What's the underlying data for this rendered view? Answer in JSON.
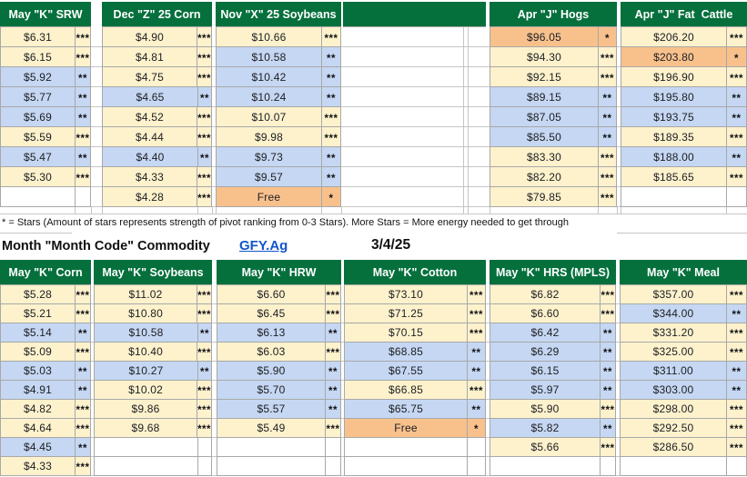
{
  "note": "* = Stars (Amount of stars represents strength of pivot ranking from 0-3 Stars). More Stars = More energy needed to get through",
  "title_row": {
    "title": "Month \"Month Code\" Commodity",
    "link": "GFY.Ag",
    "date": "3/4/25"
  },
  "colors": {
    "header_green": "#06703d",
    "cream": "#fdf2cc",
    "blue": "#c5d7f2",
    "orange": "#f8c18c",
    "link_blue": "#1155cc",
    "grid": "#a8a8a8"
  },
  "top_section": {
    "blocks": [
      {
        "key": "may-k-srw",
        "header": "May \"K\" SRW",
        "rows": [
          {
            "value": "$6.31",
            "stars": "***",
            "bg": "cream"
          },
          {
            "value": "$6.15",
            "stars": "***",
            "bg": "cream"
          },
          {
            "value": "$5.92",
            "stars": "**",
            "bg": "blue"
          },
          {
            "value": "$5.77",
            "stars": "**",
            "bg": "blue"
          },
          {
            "value": "$5.69",
            "stars": "**",
            "bg": "blue"
          },
          {
            "value": "$5.59",
            "stars": "***",
            "bg": "cream"
          },
          {
            "value": "$5.47",
            "stars": "**",
            "bg": "blue"
          },
          {
            "value": "$5.30",
            "stars": "***",
            "bg": "cream"
          }
        ]
      },
      {
        "key": "dec-z-25-corn",
        "header": "Dec \"Z\" 25 Corn",
        "rows": [
          {
            "value": "$4.90",
            "stars": "***",
            "bg": "cream"
          },
          {
            "value": "$4.81",
            "stars": "***",
            "bg": "cream"
          },
          {
            "value": "$4.75",
            "stars": "***",
            "bg": "cream"
          },
          {
            "value": "$4.65",
            "stars": "**",
            "bg": "blue"
          },
          {
            "value": "$4.52",
            "stars": "***",
            "bg": "cream"
          },
          {
            "value": "$4.44",
            "stars": "***",
            "bg": "cream"
          },
          {
            "value": "$4.40",
            "stars": "**",
            "bg": "blue"
          },
          {
            "value": "$4.33",
            "stars": "***",
            "bg": "cream"
          },
          {
            "value": "$4.28",
            "stars": "***",
            "bg": "cream"
          }
        ]
      },
      {
        "key": "nov-x-25-soybeans",
        "header": "Nov \"X\" 25 Soybeans",
        "rows": [
          {
            "value": "$10.66",
            "stars": "***",
            "bg": "cream"
          },
          {
            "value": "$10.58",
            "stars": "**",
            "bg": "blue"
          },
          {
            "value": "$10.42",
            "stars": "**",
            "bg": "blue"
          },
          {
            "value": "$10.24",
            "stars": "**",
            "bg": "blue"
          },
          {
            "value": "$10.07",
            "stars": "***",
            "bg": "cream"
          },
          {
            "value": "$9.98",
            "stars": "***",
            "bg": "cream"
          },
          {
            "value": "$9.73",
            "stars": "**",
            "bg": "blue"
          },
          {
            "value": "$9.57",
            "stars": "**",
            "bg": "blue"
          },
          {
            "value": "Free",
            "stars": "*",
            "bg": "orange"
          }
        ]
      },
      {
        "key": "apr-j-hogs",
        "header": "Apr \"J\" Hogs",
        "rows": [
          {
            "value": "$96.05",
            "stars": "*",
            "bg": "orange"
          },
          {
            "value": "$94.30",
            "stars": "***",
            "bg": "cream"
          },
          {
            "value": "$92.15",
            "stars": "***",
            "bg": "cream"
          },
          {
            "value": "$89.15",
            "stars": "**",
            "bg": "blue"
          },
          {
            "value": "$87.05",
            "stars": "**",
            "bg": "blue"
          },
          {
            "value": "$85.50",
            "stars": "**",
            "bg": "blue"
          },
          {
            "value": "$83.30",
            "stars": "***",
            "bg": "cream"
          },
          {
            "value": "$82.20",
            "stars": "***",
            "bg": "cream"
          },
          {
            "value": "$79.85",
            "stars": "***",
            "bg": "cream"
          }
        ]
      },
      {
        "key": "apr-j-fat-cattle",
        "header": "Apr \"J\" Fat  Cattle",
        "rows": [
          {
            "value": "$206.20",
            "stars": "***",
            "bg": "cream"
          },
          {
            "value": "$203.80",
            "stars": "*",
            "bg": "orange"
          },
          {
            "value": "$196.90",
            "stars": "***",
            "bg": "cream"
          },
          {
            "value": "$195.80",
            "stars": "**",
            "bg": "blue"
          },
          {
            "value": "$193.75",
            "stars": "**",
            "bg": "blue"
          },
          {
            "value": "$189.35",
            "stars": "***",
            "bg": "cream"
          },
          {
            "value": "$188.00",
            "stars": "**",
            "bg": "blue"
          },
          {
            "value": "$185.65",
            "stars": "***",
            "bg": "cream"
          }
        ]
      }
    ]
  },
  "bottom_section": {
    "blocks": [
      {
        "key": "may-k-corn",
        "header": "May \"K\" Corn",
        "rows": [
          {
            "value": "$5.28",
            "stars": "***",
            "bg": "cream"
          },
          {
            "value": "$5.21",
            "stars": "***",
            "bg": "cream"
          },
          {
            "value": "$5.14",
            "stars": "**",
            "bg": "blue"
          },
          {
            "value": "$5.09",
            "stars": "***",
            "bg": "cream"
          },
          {
            "value": "$5.03",
            "stars": "**",
            "bg": "blue"
          },
          {
            "value": "$4.91",
            "stars": "**",
            "bg": "blue"
          },
          {
            "value": "$4.82",
            "stars": "***",
            "bg": "cream"
          },
          {
            "value": "$4.64",
            "stars": "***",
            "bg": "cream"
          },
          {
            "value": "$4.45",
            "stars": "**",
            "bg": "blue"
          },
          {
            "value": "$4.33",
            "stars": "***",
            "bg": "cream"
          }
        ]
      },
      {
        "key": "may-k-soybeans",
        "header": "May \"K\" Soybeans",
        "rows": [
          {
            "value": "$11.02",
            "stars": "***",
            "bg": "cream"
          },
          {
            "value": "$10.80",
            "stars": "***",
            "bg": "cream"
          },
          {
            "value": "$10.58",
            "stars": "**",
            "bg": "blue"
          },
          {
            "value": "$10.40",
            "stars": "***",
            "bg": "cream"
          },
          {
            "value": "$10.27",
            "stars": "**",
            "bg": "blue"
          },
          {
            "value": "$10.02",
            "stars": "***",
            "bg": "cream"
          },
          {
            "value": "$9.86",
            "stars": "***",
            "bg": "cream"
          },
          {
            "value": "$9.68",
            "stars": "***",
            "bg": "cream"
          }
        ]
      },
      {
        "key": "may-k-hrw",
        "header": "May \"K\" HRW",
        "rows": [
          {
            "value": "$6.60",
            "stars": "***",
            "bg": "cream"
          },
          {
            "value": "$6.45",
            "stars": "***",
            "bg": "cream"
          },
          {
            "value": "$6.13",
            "stars": "**",
            "bg": "blue"
          },
          {
            "value": "$6.03",
            "stars": "***",
            "bg": "cream"
          },
          {
            "value": "$5.90",
            "stars": "**",
            "bg": "blue"
          },
          {
            "value": "$5.70",
            "stars": "**",
            "bg": "blue"
          },
          {
            "value": "$5.57",
            "stars": "**",
            "bg": "blue"
          },
          {
            "value": "$5.49",
            "stars": "***",
            "bg": "cream"
          }
        ]
      },
      {
        "key": "may-k-cotton",
        "header": "May \"K\" Cotton",
        "rows": [
          {
            "value": "$73.10",
            "stars": "***",
            "bg": "cream"
          },
          {
            "value": "$71.25",
            "stars": "***",
            "bg": "cream"
          },
          {
            "value": "$70.15",
            "stars": "***",
            "bg": "cream"
          },
          {
            "value": "$68.85",
            "stars": "**",
            "bg": "blue"
          },
          {
            "value": "$67.55",
            "stars": "**",
            "bg": "blue"
          },
          {
            "value": "$66.85",
            "stars": "***",
            "bg": "cream"
          },
          {
            "value": "$65.75",
            "stars": "**",
            "bg": "blue"
          },
          {
            "value": "Free",
            "stars": "*",
            "bg": "orange"
          }
        ]
      },
      {
        "key": "may-k-hrs-mpls",
        "header": "May \"K\" HRS (MPLS)",
        "rows": [
          {
            "value": "$6.82",
            "stars": "***",
            "bg": "cream"
          },
          {
            "value": "$6.60",
            "stars": "***",
            "bg": "cream"
          },
          {
            "value": "$6.42",
            "stars": "**",
            "bg": "blue"
          },
          {
            "value": "$6.29",
            "stars": "**",
            "bg": "blue"
          },
          {
            "value": "$6.15",
            "stars": "**",
            "bg": "blue"
          },
          {
            "value": "$5.97",
            "stars": "**",
            "bg": "blue"
          },
          {
            "value": "$5.90",
            "stars": "***",
            "bg": "cream"
          },
          {
            "value": "$5.82",
            "stars": "**",
            "bg": "blue"
          },
          {
            "value": "$5.66",
            "stars": "***",
            "bg": "cream"
          }
        ]
      },
      {
        "key": "may-k-meal",
        "header": "May \"K\" Meal",
        "rows": [
          {
            "value": "$357.00",
            "stars": "***",
            "bg": "cream"
          },
          {
            "value": "$344.00",
            "stars": "**",
            "bg": "blue"
          },
          {
            "value": "$331.20",
            "stars": "***",
            "bg": "cream"
          },
          {
            "value": "$325.00",
            "stars": "***",
            "bg": "cream"
          },
          {
            "value": "$311.00",
            "stars": "**",
            "bg": "blue"
          },
          {
            "value": "$303.00",
            "stars": "**",
            "bg": "blue"
          },
          {
            "value": "$298.00",
            "stars": "***",
            "bg": "cream"
          },
          {
            "value": "$292.50",
            "stars": "***",
            "bg": "cream"
          },
          {
            "value": "$286.50",
            "stars": "***",
            "bg": "cream"
          }
        ]
      }
    ]
  }
}
